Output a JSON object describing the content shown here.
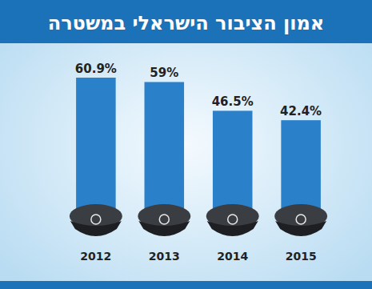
{
  "chart_data": {
    "type": "bar",
    "title": "אמון הציבור הישראלי במשטרה",
    "categories": [
      "2012",
      "2013",
      "2014",
      "2015"
    ],
    "values": [
      60.9,
      59,
      46.5,
      42.4
    ],
    "value_labels": [
      "60.9%",
      "59%",
      "46.5%",
      "42.4%"
    ],
    "color": "#2a80c9",
    "data_labels": true,
    "tick_labels": "x"
  }
}
